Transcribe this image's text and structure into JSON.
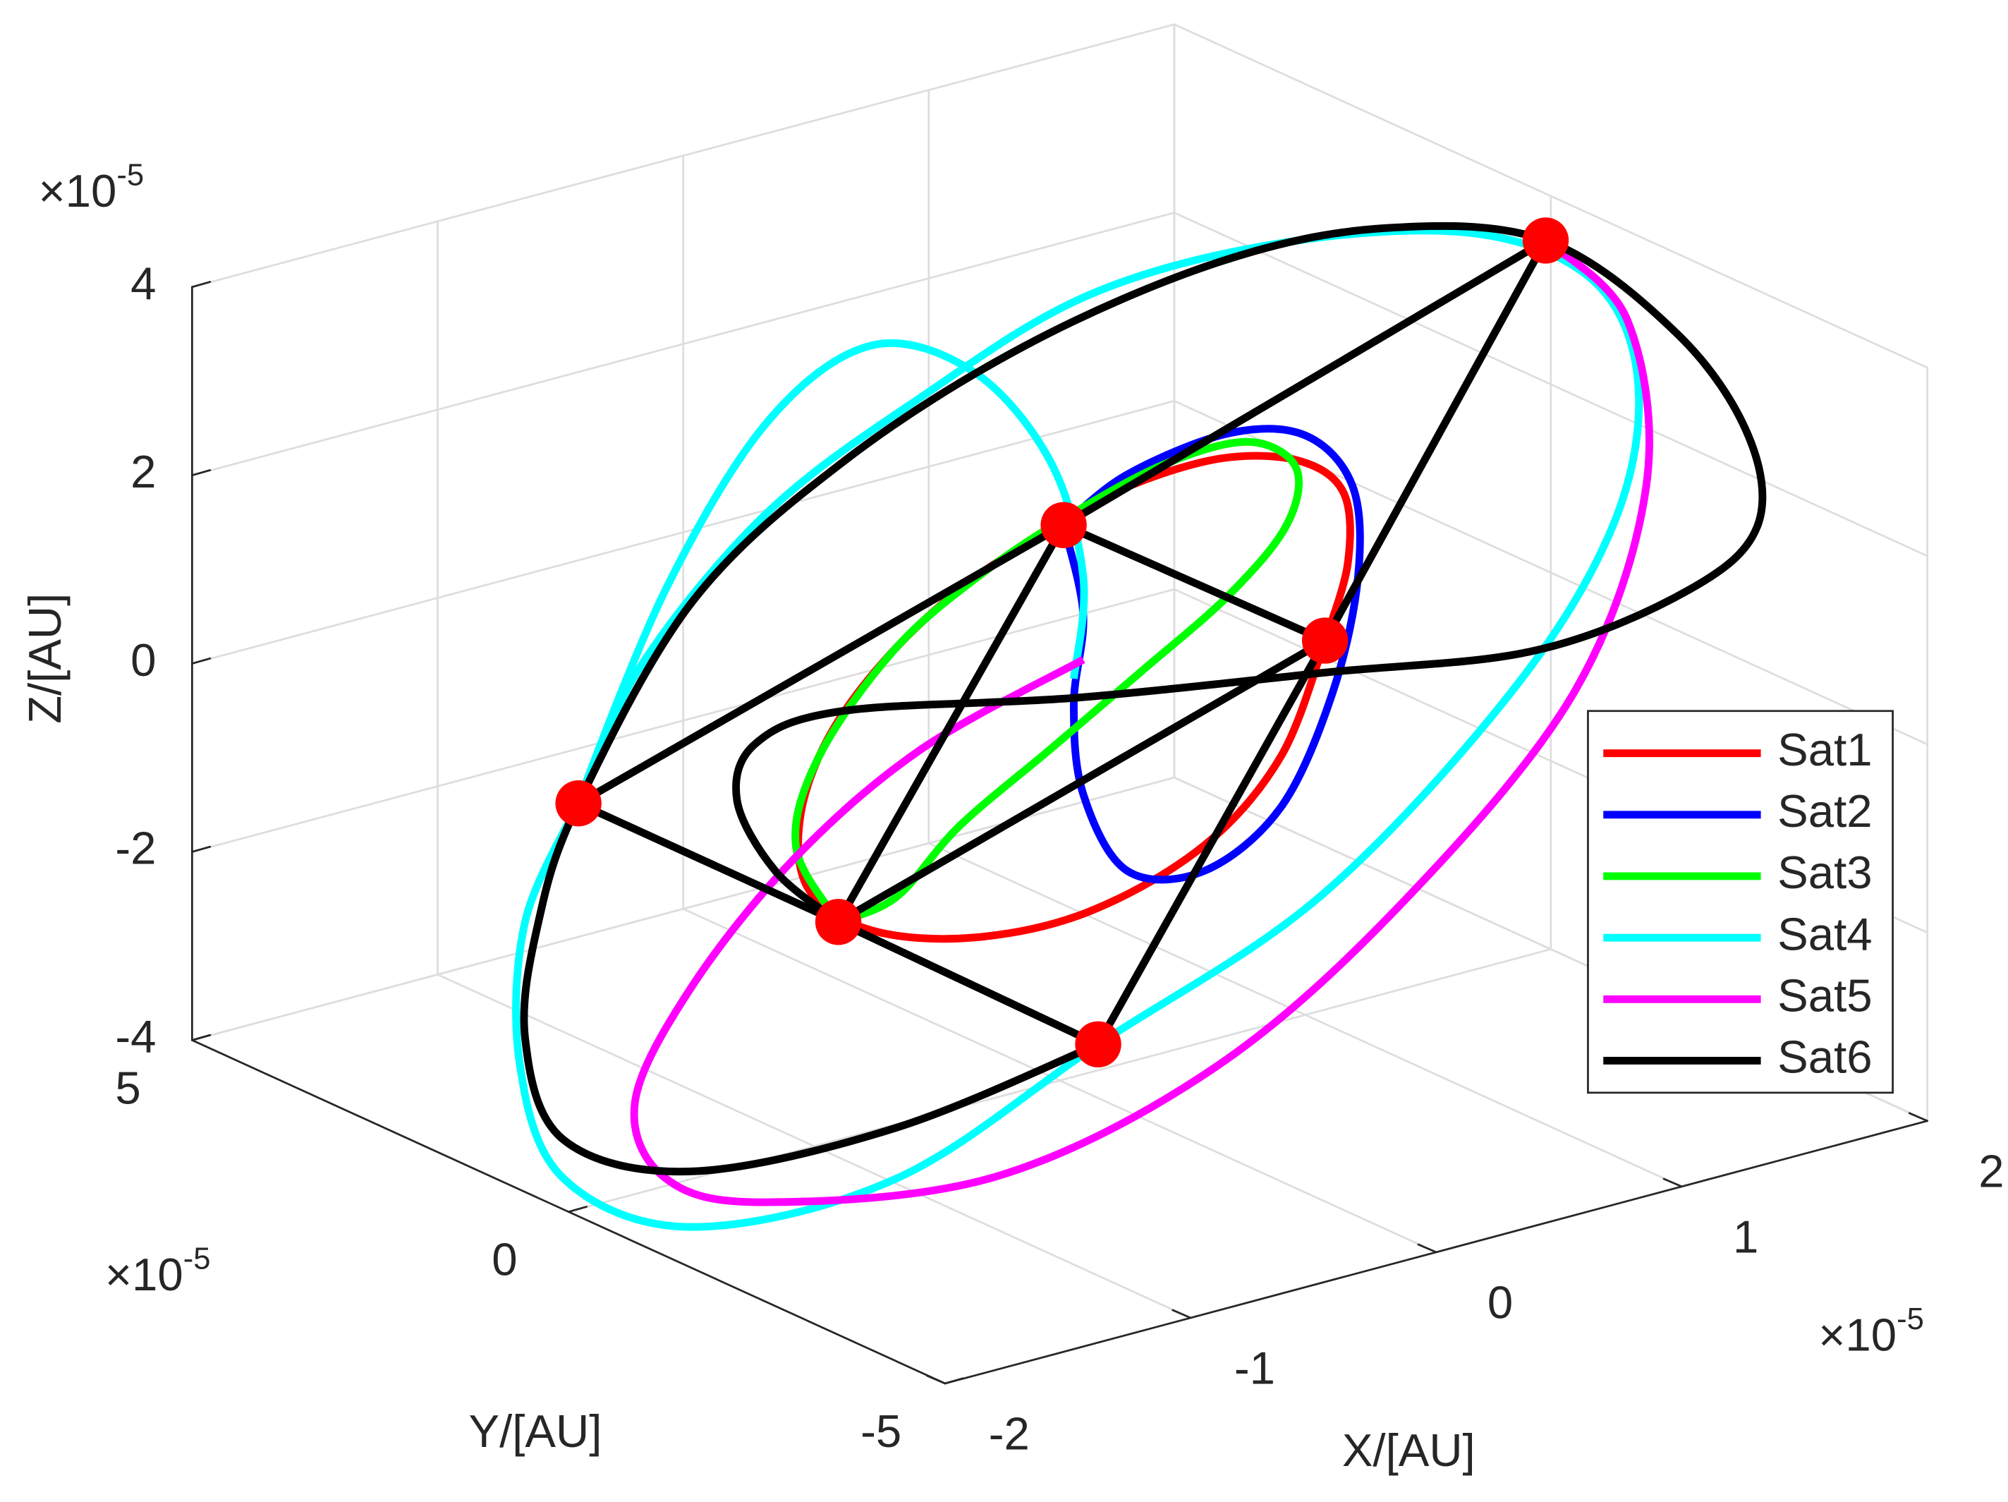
{
  "chart_data": {
    "type": "line3d",
    "xlabel": "X/[AU]",
    "ylabel": "Y/[AU]",
    "zlabel": "Z/[AU]",
    "x_multiplier": {
      "base": "×10",
      "exponent": "-5"
    },
    "y_multiplier": {
      "base": "×10",
      "exponent": "-5"
    },
    "z_multiplier": {
      "base": "×10",
      "exponent": "-5"
    },
    "xlim": [
      -2,
      2
    ],
    "ylim": [
      -5,
      5
    ],
    "zlim": [
      -4,
      4
    ],
    "xticks": [
      -2,
      -1,
      0,
      1,
      2
    ],
    "yticks": [
      -5,
      0,
      5
    ],
    "zticks": [
      -4,
      -2,
      0,
      2,
      4
    ],
    "grid": true,
    "legend": "east",
    "marker_color": "#ff0000",
    "link_color": "#000000",
    "series": [
      {
        "name": "Sat1",
        "color": "#ff0000",
        "x": [
          0.55,
          0.6,
          0.59,
          0.5,
          0.34,
          0.15,
          0.01,
          -0.18,
          -0.35,
          -0.48,
          -0.54,
          -0.52,
          -0.39,
          -0.18,
          0.06,
          0.3,
          0.46,
          0.55
        ],
        "y": [
          -1.73,
          -1.87,
          -1.85,
          -1.56,
          -1.06,
          -0.48,
          -0.02,
          0.56,
          1.1,
          1.5,
          1.69,
          1.63,
          1.23,
          0.56,
          -0.19,
          -0.94,
          -1.44,
          -1.73
        ],
        "z": [
          0.92,
          1.76,
          2.5,
          2.8,
          2.76,
          2.4,
          1.93,
          1.25,
          0.38,
          -0.56,
          -1.47,
          -2.21,
          -2.58,
          -2.56,
          -2.18,
          -1.37,
          -0.35,
          0.92
        ]
      },
      {
        "name": "Sat2",
        "color": "#0000ff",
        "x": [
          0.01,
          0.14,
          0.35,
          0.51,
          0.61,
          0.62,
          0.57,
          0.46,
          0.3,
          0.14,
          0.05,
          0.03,
          0.05,
          0.01
        ],
        "y": [
          -0.02,
          -0.44,
          -1.1,
          -1.6,
          -1.9,
          -1.94,
          -1.77,
          -1.44,
          -0.94,
          -0.44,
          -0.15,
          -0.09,
          -0.15,
          -0.02
        ],
        "z": [
          1.9,
          2.5,
          3.03,
          3.08,
          2.58,
          1.63,
          0.38,
          -0.89,
          -1.64,
          -1.71,
          -0.94,
          0.01,
          0.97,
          1.9
        ]
      },
      {
        "name": "Sat3",
        "color": "#00ff00",
        "x": [
          -0.46,
          -0.55,
          -0.5,
          -0.34,
          -0.15,
          0.03,
          0.22,
          0.39,
          0.49,
          0.47,
          0.35,
          0.17,
          -0.02,
          -0.21,
          -0.34,
          -0.46
        ],
        "y": [
          1.44,
          1.71,
          1.56,
          1.06,
          0.48,
          -0.1,
          -0.69,
          -1.23,
          -1.54,
          -1.48,
          -1.1,
          -0.52,
          0.06,
          0.65,
          1.06,
          1.44
        ],
        "z": [
          -2.52,
          -1.75,
          -0.77,
          0.45,
          1.35,
          2.05,
          2.65,
          2.96,
          2.73,
          2.11,
          1.31,
          0.41,
          -0.49,
          -1.39,
          -2.2,
          -2.52
        ]
      },
      {
        "name": "Sat4",
        "color": "#00ffff",
        "x": [
          -1.0,
          -1.11,
          -1.12,
          -1.03,
          -0.76,
          -0.34,
          0.08,
          0.54,
          0.94,
          1.15,
          1.2,
          1.11,
          0.86,
          0.46,
          0.06,
          -0.29,
          -0.61,
          -0.87,
          -1.0,
          -0.82,
          -0.61,
          -0.39,
          -0.18,
          -0.02,
          0.05,
          0.03
        ],
        "y": [
          3.13,
          3.48,
          3.52,
          3.23,
          2.4,
          1.06,
          -0.25,
          -1.69,
          -2.94,
          -3.6,
          -3.77,
          -3.48,
          -2.69,
          -1.44,
          -0.19,
          0.9,
          1.9,
          2.73,
          3.13,
          2.56,
          1.9,
          1.23,
          0.56,
          0.06,
          -0.15,
          -0.09
        ],
        "z": [
          -1.5,
          -2.81,
          -4.32,
          -5.5,
          -5.9,
          -5.19,
          -3.58,
          -1.81,
          0.55,
          2.41,
          3.93,
          4.98,
          5.38,
          5.1,
          4.37,
          3.13,
          1.76,
          0.01,
          -1.5,
          0.85,
          2.72,
          3.63,
          3.45,
          2.57,
          1.37,
          0.28
        ]
      },
      {
        "name": "Sat5",
        "color": "#ff00ff",
        "x": [
          1.01,
          1.18,
          1.22,
          1.07,
          0.72,
          0.33,
          -0.13,
          -0.61,
          -0.82,
          -0.88,
          -0.76,
          -0.55,
          -0.29,
          0.05
        ],
        "y": [
          -3.16,
          -3.69,
          -3.81,
          -3.35,
          -2.27,
          -1.02,
          0.4,
          1.9,
          2.56,
          2.77,
          2.4,
          1.73,
          0.9,
          -0.15
        ],
        "z": [
          5.37,
          4.6,
          2.85,
          0.61,
          -1.73,
          -3.7,
          -5.07,
          -5.56,
          -5.4,
          -4.62,
          -3.34,
          -1.89,
          -0.61,
          0.49
        ]
      },
      {
        "name": "Sat6",
        "color": "#000000",
        "x": [
          0.08,
          -0.34,
          -0.76,
          -1.03,
          -1.11,
          -1.08,
          -1.0,
          -0.76,
          -0.45,
          -0.07,
          0.33,
          0.67,
          1.01,
          1.28,
          1.43,
          1.45,
          1.31,
          0.99,
          0.55,
          0.03,
          -0.45,
          -0.63,
          -0.67,
          -0.59,
          -0.46
        ],
        "y": [
          -0.25,
          1.06,
          2.4,
          3.23,
          3.48,
          3.4,
          3.13,
          2.4,
          1.4,
          0.23,
          -1.02,
          -2.1,
          -3.16,
          -4.02,
          -4.48,
          -4.54,
          -4.1,
          -3.1,
          -1.73,
          -0.1,
          1.4,
          1.98,
          2.1,
          1.85,
          1.44
        ],
        "z": [
          -3.58,
          -4.65,
          -5.31,
          -5.09,
          -4.04,
          -2.8,
          -1.5,
          0.74,
          2.38,
          3.77,
          4.83,
          5.35,
          5.37,
          4.51,
          3.49,
          2.54,
          1.8,
          1.01,
          0.58,
          0.08,
          -0.27,
          -0.7,
          -1.32,
          -2.04,
          -2.52
        ]
      }
    ],
    "links": [
      [
        4,
        1
      ],
      [
        1,
        3
      ],
      [
        4,
        0
      ],
      [
        0,
        5
      ],
      [
        3,
        2
      ],
      [
        2,
        5
      ],
      [
        1,
        0
      ],
      [
        1,
        2
      ],
      [
        0,
        2
      ]
    ]
  }
}
